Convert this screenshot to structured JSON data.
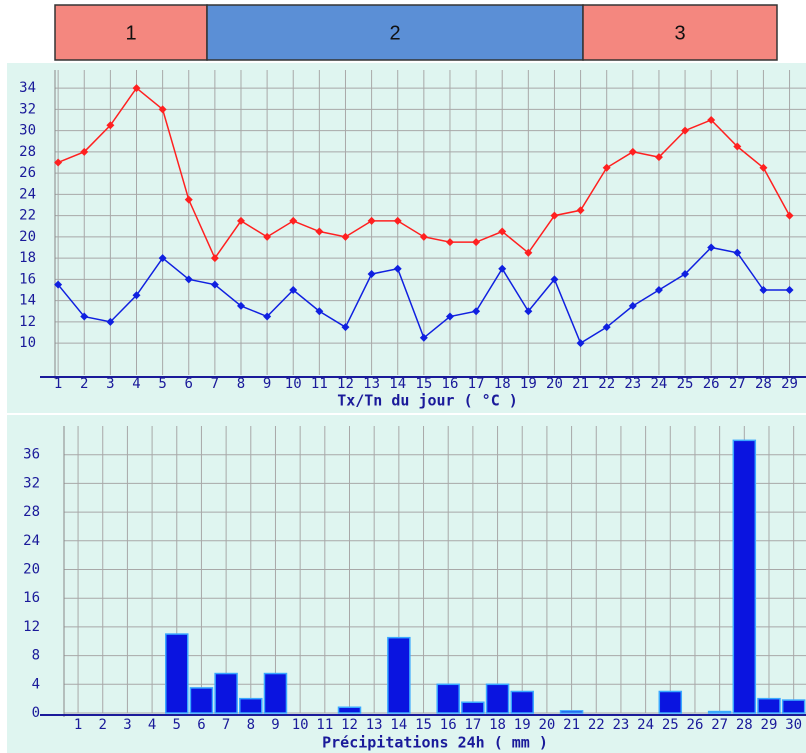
{
  "header_bands": [
    {
      "label": "1",
      "color": "#f4877f"
    },
    {
      "label": "2",
      "color": "#5b8fd6"
    },
    {
      "label": "3",
      "color": "#f4877f"
    }
  ],
  "chart_data": [
    {
      "type": "line",
      "xlabel": "Tx/Tn du jour ( °C )",
      "x": [
        1,
        2,
        3,
        4,
        5,
        6,
        7,
        8,
        9,
        10,
        11,
        12,
        13,
        14,
        15,
        16,
        17,
        18,
        19,
        20,
        21,
        22,
        23,
        24,
        25,
        26,
        27,
        28,
        29
      ],
      "xticks": [
        1,
        2,
        3,
        4,
        5,
        6,
        7,
        8,
        9,
        10,
        11,
        12,
        13,
        14,
        15,
        16,
        17,
        18,
        19,
        20,
        21,
        22,
        23,
        24,
        25,
        26,
        27,
        28,
        29
      ],
      "xlim": [
        0.88,
        29.4
      ],
      "ylim": [
        7,
        35.7
      ],
      "yticks": [
        10,
        12,
        14,
        16,
        18,
        20,
        22,
        24,
        26,
        28,
        30,
        32,
        34
      ],
      "grid": true,
      "series": [
        {
          "color": "#ff2020",
          "values": [
            27,
            28,
            30.5,
            34,
            32,
            23.5,
            18,
            21.5,
            20,
            21.5,
            20.5,
            20,
            21.5,
            21.5,
            20,
            19.5,
            19.5,
            20.5,
            18.5,
            22,
            22.5,
            26.5,
            28,
            27.5,
            30,
            31,
            28.5,
            26.5,
            22
          ]
        },
        {
          "color": "#1020e0",
          "values": [
            15.5,
            12.5,
            12,
            14.5,
            18,
            16,
            15.5,
            13.5,
            12.5,
            15,
            13,
            11.5,
            16.5,
            17,
            10.5,
            12.5,
            13,
            17,
            13,
            16,
            10,
            11.5,
            13.5,
            15,
            16.5,
            19,
            18.5,
            15,
            15
          ]
        }
      ]
    },
    {
      "type": "bar",
      "xlabel": "Précipitations 24h ( mm )",
      "x": [
        1,
        2,
        3,
        4,
        5,
        6,
        7,
        8,
        9,
        10,
        11,
        12,
        13,
        14,
        15,
        16,
        17,
        18,
        19,
        20,
        21,
        22,
        23,
        24,
        25,
        26,
        27,
        28,
        29,
        30
      ],
      "xticks": [
        1,
        2,
        3,
        4,
        5,
        6,
        7,
        8,
        9,
        10,
        11,
        12,
        13,
        14,
        15,
        16,
        17,
        18,
        19,
        20,
        21,
        22,
        23,
        24,
        25,
        26,
        27,
        28,
        29,
        30
      ],
      "xlim": [
        0.43,
        30.5
      ],
      "ylim": [
        0,
        40
      ],
      "yticks": [
        0,
        4,
        8,
        12,
        16,
        20,
        24,
        28,
        32,
        36
      ],
      "grid": true,
      "color": "#0a14e0",
      "values": [
        0,
        0,
        0,
        0,
        11,
        3.5,
        5.5,
        2,
        5.5,
        0,
        0,
        0.8,
        0,
        10.5,
        0,
        4,
        1.5,
        4,
        3,
        0,
        0.3,
        0,
        0,
        0,
        3,
        0,
        0.2,
        38,
        2,
        1.8
      ]
    }
  ]
}
